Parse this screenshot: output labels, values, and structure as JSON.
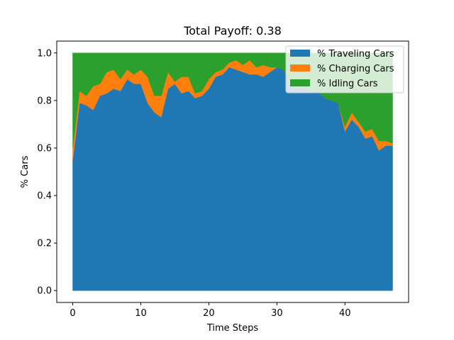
{
  "chart_data": {
    "type": "area",
    "stacked": true,
    "title": "Total Payoff: 0.38",
    "xlabel": "Time Steps",
    "ylabel": "% Cars",
    "xlim": [
      -2.35,
      49.35
    ],
    "ylim": [
      -0.05,
      1.05
    ],
    "x_ticks": [
      0,
      10,
      20,
      30,
      40
    ],
    "y_ticks": [
      0.0,
      0.2,
      0.4,
      0.6,
      0.8,
      1.0
    ],
    "x_tick_labels": [
      "0",
      "10",
      "20",
      "30",
      "40"
    ],
    "y_tick_labels": [
      "0.0",
      "0.2",
      "0.4",
      "0.6",
      "0.8",
      "1.0"
    ],
    "legend_position": "top-right",
    "x": [
      0,
      1,
      2,
      3,
      4,
      5,
      6,
      7,
      8,
      9,
      10,
      11,
      12,
      13,
      14,
      15,
      16,
      17,
      18,
      19,
      20,
      21,
      22,
      23,
      24,
      25,
      26,
      27,
      28,
      29,
      30,
      31,
      32,
      33,
      34,
      35,
      36,
      37,
      38,
      39,
      40,
      41,
      42,
      43,
      44,
      45,
      46,
      47
    ],
    "series": [
      {
        "name": "% Traveling Cars",
        "color": "#1f77b4",
        "values": [
          0.55,
          0.79,
          0.78,
          0.76,
          0.82,
          0.83,
          0.85,
          0.84,
          0.89,
          0.87,
          0.87,
          0.79,
          0.75,
          0.73,
          0.85,
          0.87,
          0.83,
          0.84,
          0.81,
          0.82,
          0.85,
          0.9,
          0.91,
          0.94,
          0.93,
          0.92,
          0.91,
          0.91,
          0.9,
          0.92,
          0.94,
          0.93,
          0.86,
          0.85,
          0.86,
          0.84,
          0.84,
          0.81,
          0.8,
          0.79,
          0.67,
          0.72,
          0.69,
          0.64,
          0.65,
          0.59,
          0.61,
          0.61
        ]
      },
      {
        "name": "% Charging Cars",
        "color": "#ff7f0e",
        "values": [
          0.05,
          0.05,
          0.04,
          0.1,
          0.05,
          0.09,
          0.08,
          0.05,
          0.04,
          0.04,
          0.06,
          0.11,
          0.07,
          0.09,
          0.07,
          0.01,
          0.07,
          0.06,
          0.02,
          0.02,
          0.04,
          0.02,
          0.02,
          0.02,
          0.04,
          0.03,
          0.06,
          0.03,
          0.05,
          0.02,
          0.0,
          0.0,
          0.0,
          0.0,
          0.0,
          0.0,
          0.0,
          0.0,
          0.0,
          0.0,
          0.02,
          0.03,
          0.02,
          0.03,
          0.03,
          0.04,
          0.02,
          0.01
        ]
      },
      {
        "name": "% Idling Cars",
        "color": "#2ca02c",
        "values": [
          0.4,
          0.16,
          0.18,
          0.14,
          0.13,
          0.08,
          0.07,
          0.11,
          0.07,
          0.09,
          0.07,
          0.1,
          0.18,
          0.18,
          0.08,
          0.12,
          0.1,
          0.1,
          0.17,
          0.16,
          0.11,
          0.08,
          0.07,
          0.04,
          0.03,
          0.05,
          0.03,
          0.06,
          0.05,
          0.06,
          0.06,
          0.07,
          0.14,
          0.15,
          0.14,
          0.16,
          0.16,
          0.19,
          0.2,
          0.21,
          0.31,
          0.25,
          0.29,
          0.33,
          0.32,
          0.37,
          0.37,
          0.38
        ]
      }
    ]
  }
}
